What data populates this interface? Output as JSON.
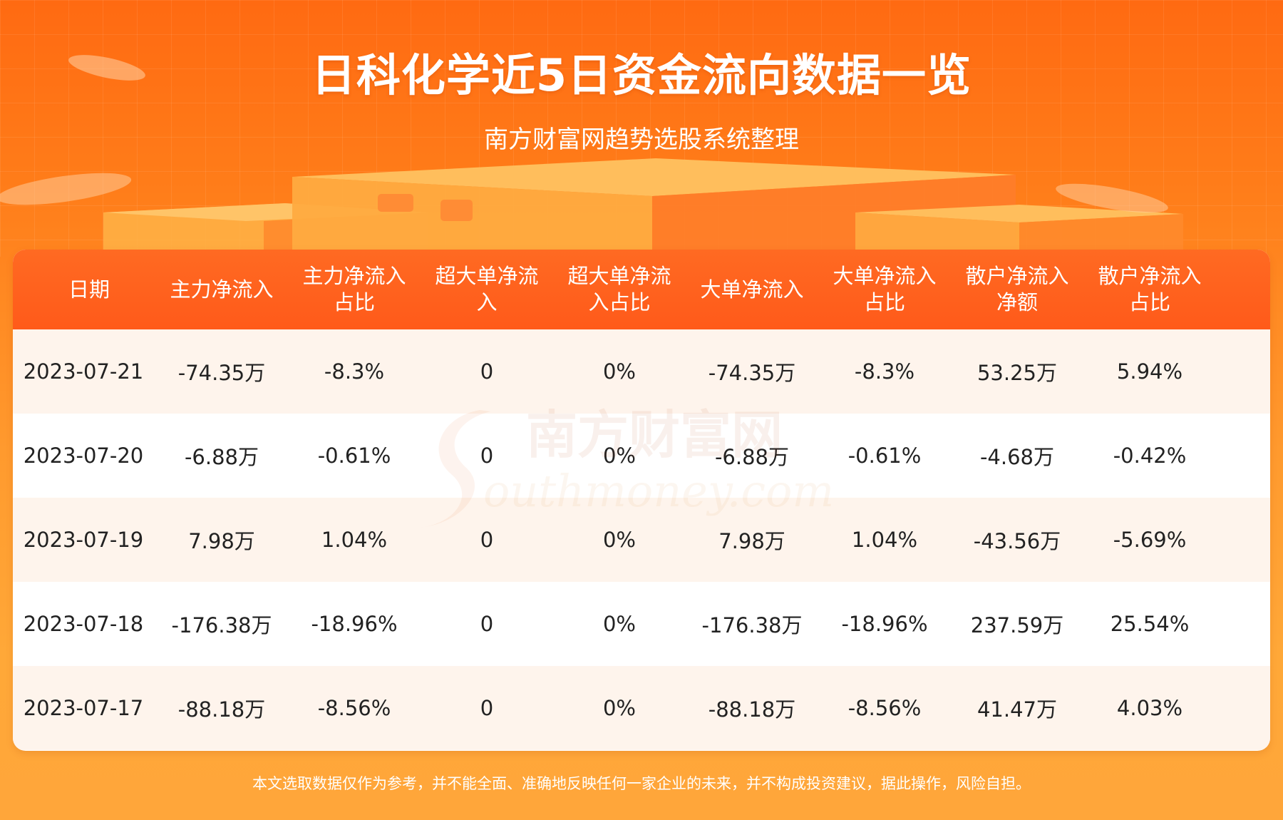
{
  "header": {
    "title": "日科化学近5日资金流向数据一览",
    "subtitle": "南方财富网趋势选股系统整理"
  },
  "table": {
    "columns": [
      {
        "line1": "日期",
        "line2": ""
      },
      {
        "line1": "主力净流入",
        "line2": ""
      },
      {
        "line1": "主力净流入",
        "line2": "占比"
      },
      {
        "line1": "超大单净流",
        "line2": "入"
      },
      {
        "line1": "超大单净流",
        "line2": "入占比"
      },
      {
        "line1": "大单净流入",
        "line2": ""
      },
      {
        "line1": "大单净流入",
        "line2": "占比"
      },
      {
        "line1": "散户净流入",
        "line2": "净额"
      },
      {
        "line1": "散户净流入",
        "line2": "占比"
      }
    ],
    "rows": [
      [
        "2023-07-21",
        "-74.35万",
        "-8.3%",
        "0",
        "0%",
        "-74.35万",
        "-8.3%",
        "53.25万",
        "5.94%"
      ],
      [
        "2023-07-20",
        "-6.88万",
        "-0.61%",
        "0",
        "0%",
        "-6.88万",
        "-0.61%",
        "-4.68万",
        "-0.42%"
      ],
      [
        "2023-07-19",
        "7.98万",
        "1.04%",
        "0",
        "0%",
        "7.98万",
        "1.04%",
        "-43.56万",
        "-5.69%"
      ],
      [
        "2023-07-18",
        "-176.38万",
        "-18.96%",
        "0",
        "0%",
        "-176.38万",
        "-18.96%",
        "237.59万",
        "25.54%"
      ],
      [
        "2023-07-17",
        "-88.18万",
        "-8.56%",
        "0",
        "0%",
        "-88.18万",
        "-8.56%",
        "41.47万",
        "4.03%"
      ]
    ]
  },
  "watermark": {
    "cn": "南方财富网",
    "en": "outhmoney.com"
  },
  "footer": {
    "disclaimer": "本文选取数据仅作为参考，并不能全面、准确地反映任何一家企业的未来，并不构成投资建议，据此操作，风险自担。"
  }
}
